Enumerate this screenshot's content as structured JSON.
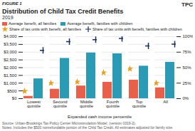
{
  "chart_data": {
    "type": "bar",
    "title": "Distribution of Child Tax Credit Benefits",
    "subtitle": "2019",
    "annotations": [
      "FIGURE 1",
      "TPC",
      "Source: Urban-Brookings Tax Policy Center Microsimulation Model, (version 0319-2).",
      "Notes: Includes the $500 nonrefundable portion of the Child Tax Credit. All estimates adjusted for family size."
    ],
    "xlabel": "Expanded cash income percentile",
    "categories": [
      "Lowest quintile",
      "Second quintile",
      "Middle quintile",
      "Fourth quintile",
      "Top quintile",
      "All"
    ],
    "series": [
      {
        "name": "Average benefit, all families",
        "type": "bar",
        "color": "#e8604a",
        "values": [
          150,
          610,
          820,
          1060,
          1200,
          700
        ]
      },
      {
        "name": "Average benefit, families with children",
        "type": "bar",
        "color": "#2a9ab5",
        "values": [
          1280,
          2600,
          2950,
          2900,
          2100,
          2350
        ]
      },
      {
        "name": "Share of tax units with benefit, all families",
        "type": "scatter",
        "marker": "star",
        "color": "#e8a020",
        "axis": "y2",
        "values": [
          12,
          25,
          27,
          42,
          48,
          25
        ]
      },
      {
        "name": "Share of tax units with benefit, families with children",
        "type": "scatter",
        "marker": "plus",
        "color": "#1a3060",
        "axis": "y2",
        "values": [
          78,
          92,
          95,
          97,
          85,
          88
        ]
      }
    ],
    "ylim": [
      0,
      4000
    ],
    "yticks": [
      {
        "value": 0,
        "label": "$0"
      },
      {
        "value": 500,
        "label": "$500"
      },
      {
        "value": 1000,
        "label": "$1,000"
      },
      {
        "value": 1500,
        "label": "$1,500"
      },
      {
        "value": 2000,
        "label": "$2,000"
      },
      {
        "value": 2500,
        "label": "$2,500"
      },
      {
        "value": 3000,
        "label": "$3,000"
      },
      {
        "value": 3500,
        "label": "$3,500"
      },
      {
        "value": 4000,
        "label": "$4,000"
      }
    ],
    "y2lim": [
      0,
      100
    ],
    "y2ticks": [
      {
        "value": 0,
        "label": "0%"
      },
      {
        "value": 25,
        "label": "25%"
      },
      {
        "value": 50,
        "label": "50%"
      },
      {
        "value": 75,
        "label": "75%"
      },
      {
        "value": 100,
        "label": "100%"
      }
    ],
    "grid": true
  }
}
